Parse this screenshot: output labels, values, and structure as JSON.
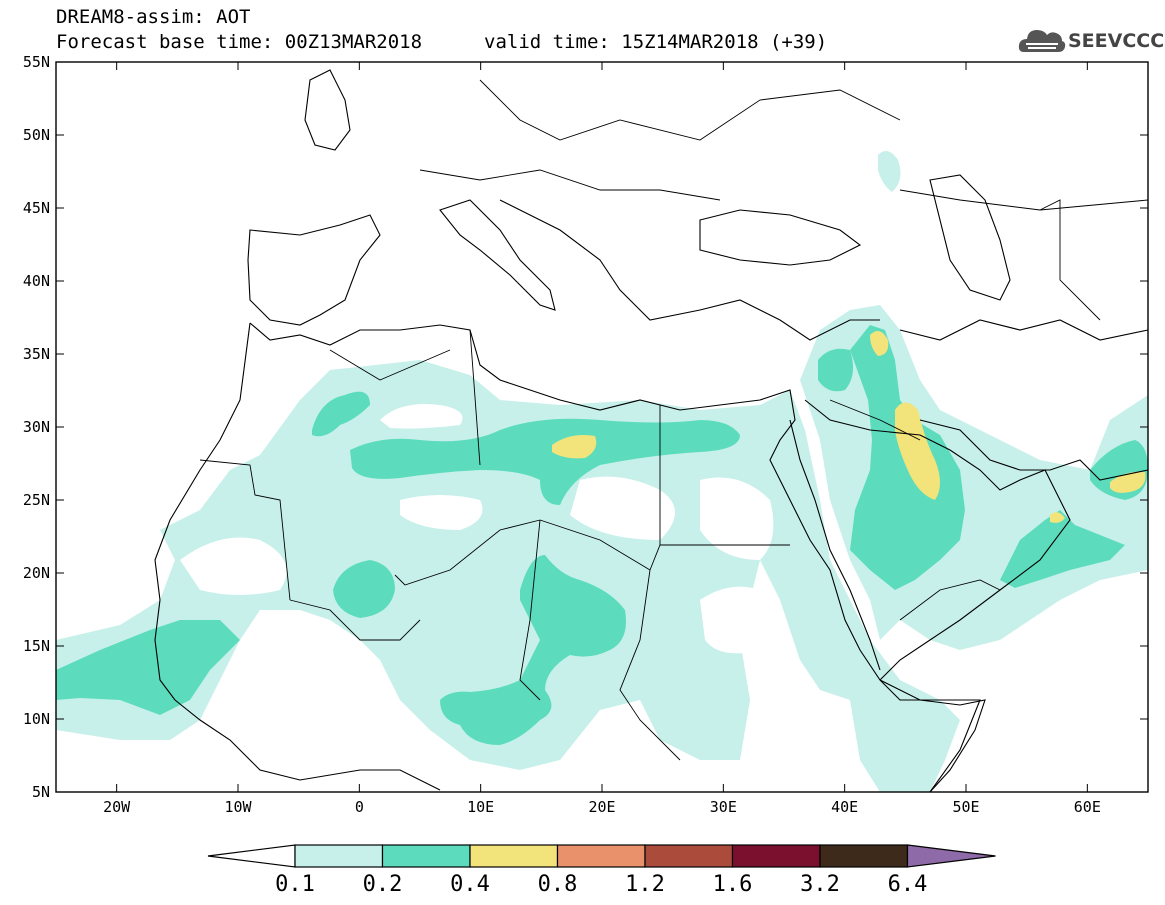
{
  "header": {
    "line1": "DREAM8-assim: AOT",
    "line2": "Forecast base time: 00Z13MAR2018",
    "valid": "valid time: 15Z14MAR2018 (+39)"
  },
  "logo": {
    "text": "SEEVCCC",
    "icon": "cloud-icon",
    "color": "#444444"
  },
  "map": {
    "lon_range": [
      -25,
      65
    ],
    "lat_range": [
      5,
      55
    ],
    "lat_ticks": [
      "55N",
      "50N",
      "45N",
      "40N",
      "35N",
      "30N",
      "25N",
      "20N",
      "15N",
      "10N",
      "5N"
    ],
    "lon_ticks": [
      "20W",
      "10W",
      "0",
      "10E",
      "20E",
      "30E",
      "40E",
      "50E",
      "60E"
    ],
    "lat_values": [
      55,
      50,
      45,
      40,
      35,
      30,
      25,
      20,
      15,
      10,
      5
    ],
    "lon_values": [
      -20,
      -10,
      0,
      10,
      20,
      30,
      40,
      50,
      60
    ]
  },
  "colorbar": {
    "labels": [
      "0.1",
      "0.2",
      "0.4",
      "0.8",
      "1.2",
      "1.6",
      "3.2",
      "6.4"
    ],
    "colors": [
      "#c7f0ea",
      "#5cdcbd",
      "#f2e37a",
      "#e8916a",
      "#aa4b3c",
      "#7a0f2e",
      "#3e2a1a"
    ],
    "under_color": "#ffffff",
    "over_color": "#8f6aa8"
  }
}
